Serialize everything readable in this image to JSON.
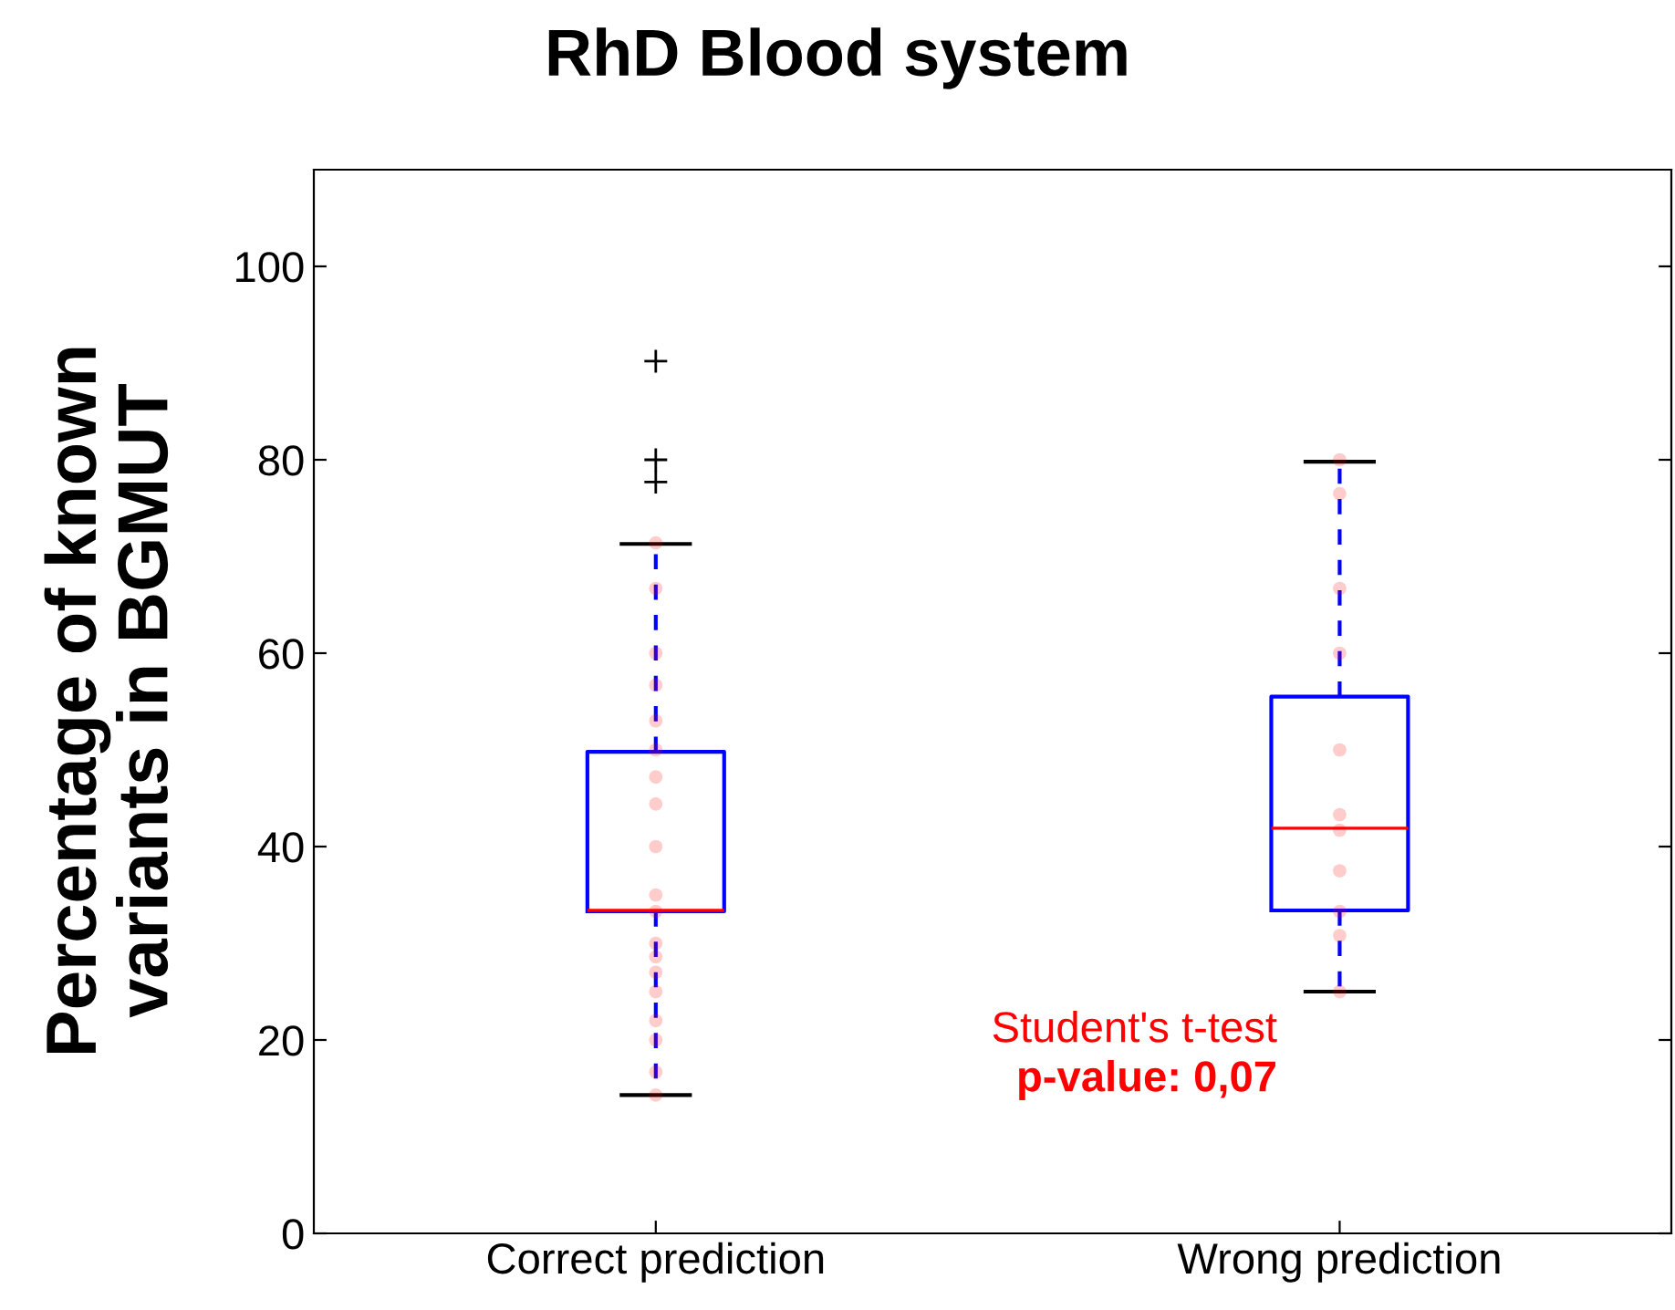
{
  "chart_data": {
    "type": "box",
    "title": "RhD Blood system",
    "ylabel": "Percentage of known\nvariants in BGMUT",
    "categories": [
      "Correct prediction",
      "Wrong prediction"
    ],
    "boxes": [
      {
        "low": 14.3,
        "q1": 33.3,
        "median": 33.4,
        "q3": 49.8,
        "high": 71.3,
        "outliers": [
          90.2,
          80,
          77.7
        ]
      },
      {
        "low": 25,
        "q1": 33.4,
        "median": 41.9,
        "q3": 55.5,
        "high": 79.8
      }
    ],
    "series": [
      {
        "type": "scatter",
        "color": "#ff0000",
        "x": [
          "Correct prediction",
          "Correct prediction",
          "Correct prediction",
          "Correct prediction",
          "Correct prediction",
          "Correct prediction",
          "Correct prediction",
          "Correct prediction",
          "Correct prediction",
          "Correct prediction",
          "Correct prediction",
          "Correct prediction",
          "Correct prediction",
          "Correct prediction",
          "Correct prediction",
          "Correct prediction",
          "Correct prediction",
          "Correct prediction",
          "Correct prediction",
          "Wrong prediction",
          "Wrong prediction",
          "Wrong prediction",
          "Wrong prediction",
          "Wrong prediction",
          "Wrong prediction",
          "Wrong prediction",
          "Wrong prediction",
          "Wrong prediction",
          "Wrong prediction",
          "Wrong prediction"
        ],
        "values": [
          71.4,
          66.7,
          60,
          56.7,
          53,
          50,
          47.2,
          44.4,
          40,
          35,
          33.3,
          30,
          28.6,
          27,
          25,
          22,
          20,
          16.7,
          14.3,
          80,
          76.5,
          66.7,
          60,
          50,
          43.3,
          41.7,
          37.5,
          33.3,
          30.8,
          25
        ]
      }
    ],
    "ylim": [
      0,
      110
    ],
    "yticks": [
      0,
      20,
      40,
      60,
      80,
      100
    ],
    "grid": false,
    "marker": "circle",
    "annotations": [
      "Student's t-test",
      "p-value: 0,07"
    ]
  }
}
